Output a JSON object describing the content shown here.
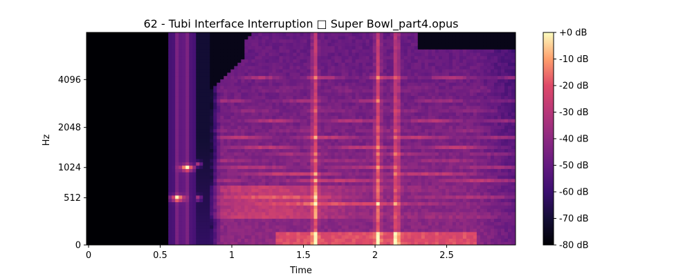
{
  "chart_data": {
    "type": "heatmap",
    "title": "62 - Tubi Interface Interruption □ Super Bowl_part4.opus",
    "xlabel": "Time",
    "ylabel": "Hz",
    "xlim": [
      0,
      3.0
    ],
    "x_ticks": [
      {
        "value": 0,
        "label": "0"
      },
      {
        "value": 0.5,
        "label": "0.5"
      },
      {
        "value": 1.0,
        "label": "1"
      },
      {
        "value": 1.5,
        "label": "1.5"
      },
      {
        "value": 2.0,
        "label": "2"
      },
      {
        "value": 2.5,
        "label": "2.5"
      }
    ],
    "y_scale": "log-like (mel)",
    "y_ticks": [
      {
        "value": 0,
        "label": "0"
      },
      {
        "value": 512,
        "label": "512"
      },
      {
        "value": 1024,
        "label": "1024"
      },
      {
        "value": 2048,
        "label": "2048"
      },
      {
        "value": 4096,
        "label": "4096"
      }
    ],
    "colorbar": {
      "range": [
        -80,
        0
      ],
      "colormap": "magma",
      "ticks": [
        {
          "value": 0,
          "label": "+0 dB"
        },
        {
          "value": -10,
          "label": "-10 dB"
        },
        {
          "value": -20,
          "label": "-20 dB"
        },
        {
          "value": -30,
          "label": "-30 dB"
        },
        {
          "value": -40,
          "label": "-40 dB"
        },
        {
          "value": -50,
          "label": "-50 dB"
        },
        {
          "value": -60,
          "label": "-60 dB"
        },
        {
          "value": -70,
          "label": "-70 dB"
        },
        {
          "value": -80,
          "label": "-80 dB"
        }
      ]
    },
    "silence_until_s": 0.56,
    "tone_burst": {
      "start_s": 0.56,
      "end_s": 0.75,
      "bright_freqs_hz": [
        512,
        1024
      ]
    },
    "speech_start_s": 0.84,
    "speech_end_s": 2.98,
    "harmonic_bands_hz": [
      290,
      440,
      540,
      650,
      780,
      900,
      1020,
      1150,
      1300,
      1500,
      1750,
      2000,
      2300,
      2700,
      3100,
      3600,
      4200
    ],
    "vertical_bursts_s": [
      1.58,
      2.02,
      2.15
    ]
  }
}
